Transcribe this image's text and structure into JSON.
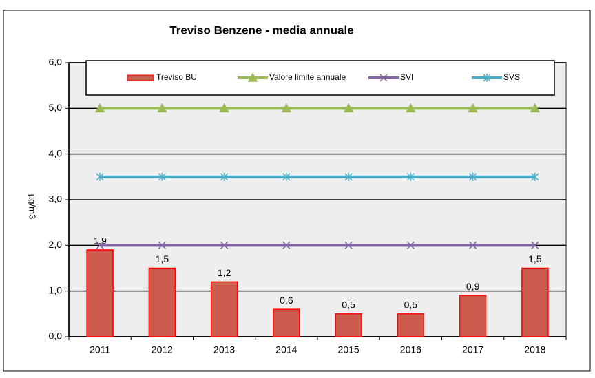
{
  "chart_data": {
    "type": "bar",
    "title": "Treviso Benzene - media annuale",
    "y_label": "µg/m3",
    "categories": [
      "2011",
      "2012",
      "2013",
      "2014",
      "2015",
      "2016",
      "2017",
      "2018"
    ],
    "series": [
      {
        "name": "Treviso BU",
        "type": "bar",
        "color": "#cd5c4f",
        "values": [
          1.9,
          1.5,
          1.2,
          0.6,
          0.5,
          0.5,
          0.9,
          1.5
        ],
        "value_labels": [
          "1,9",
          "1,5",
          "1,2",
          "0,6",
          "0,5",
          "0,5",
          "0,9",
          "1,5"
        ]
      },
      {
        "name": "Valore limite annuale",
        "type": "line",
        "marker": "triangle",
        "color": "#9bbb59",
        "values": [
          5,
          5,
          5,
          5,
          5,
          5,
          5,
          5
        ]
      },
      {
        "name": "SVI",
        "type": "line",
        "marker": "x",
        "color": "#8064a2",
        "values": [
          2,
          2,
          2,
          2,
          2,
          2,
          2,
          2
        ]
      },
      {
        "name": "SVS",
        "type": "line",
        "marker": "star",
        "color": "#4bacc6",
        "values": [
          3.5,
          3.5,
          3.5,
          3.5,
          3.5,
          3.5,
          3.5,
          3.5
        ]
      }
    ],
    "ylim": [
      0,
      6
    ],
    "yticks": [
      {
        "value": 0,
        "label": "0,0"
      },
      {
        "value": 1,
        "label": "1,0"
      },
      {
        "value": 2,
        "label": "2,0"
      },
      {
        "value": 3,
        "label": "3,0"
      },
      {
        "value": 4,
        "label": "4,0"
      },
      {
        "value": 5,
        "label": "5,0"
      },
      {
        "value": 6,
        "label": "6,0"
      }
    ],
    "grid": true,
    "legend": "top"
  }
}
